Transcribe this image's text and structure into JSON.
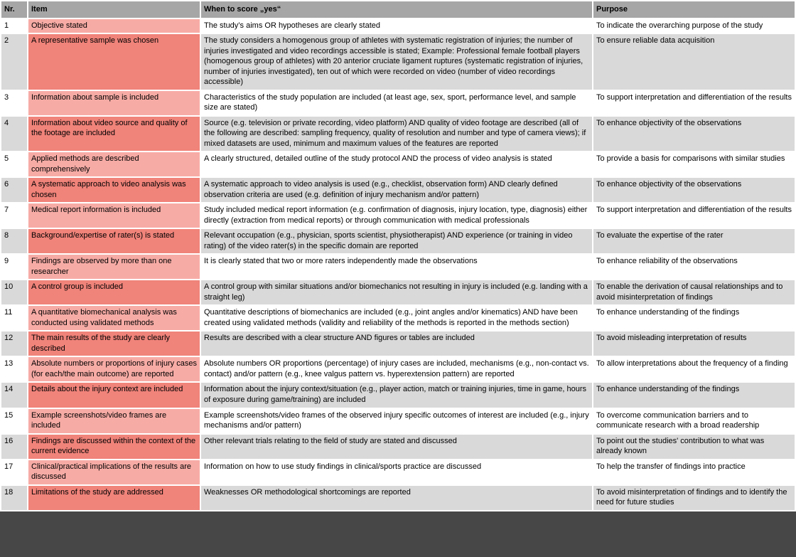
{
  "table": {
    "headers": {
      "nr": "Nr.",
      "item": "Item",
      "when": "When to score „yes“",
      "purpose": "Purpose"
    },
    "rows": [
      {
        "nr": "1",
        "item": "Objective stated",
        "when": "The study’s aims OR hypotheses are clearly stated",
        "purpose": "To indicate the overarching purpose of the study"
      },
      {
        "nr": "2",
        "item": "A representative sample was chosen",
        "when": "The study considers a homogenous group of athletes with systematic registration of injuries; the number of injuries investigated and video recordings accessible is stated; Example: Professional female football players (homogenous group of athletes) with 20 anterior cruciate ligament ruptures (systematic registration of injuries, number of injuries investigated), ten out of which were recorded on video (number of video recordings accessible)",
        "purpose": "To ensure reliable data acquisition"
      },
      {
        "nr": "3",
        "item": "Information about sample is included",
        "when": "Characteristics of the study population are included (at least age, sex, sport, performance level, and sample size are stated)",
        "purpose": "To support interpretation and differentiation of the results"
      },
      {
        "nr": "4",
        "item": "Information about video source and quality of the footage are included",
        "when": "Source (e.g. television or private recording, video platform) AND quality of video footage are described (all of the following are described: sampling frequency, quality of resolution and number and type of camera views); if mixed datasets are used, minimum and maximum values of the features are reported",
        "purpose": "To enhance objectivity of the observations"
      },
      {
        "nr": "5",
        "item": "Applied methods are described comprehensively",
        "when": "A clearly structured, detailed outline of the study protocol AND the process of video analysis is stated",
        "purpose": "To provide a basis for comparisons with similar studies"
      },
      {
        "nr": "6",
        "item": "A systematic approach to video analysis was chosen",
        "when": "A systematic approach to video analysis is used (e.g., checklist, observation form) AND clearly defined observation criteria are used (e.g. definition of injury mechanism and/or pattern)",
        "purpose": "To enhance objectivity of the observations"
      },
      {
        "nr": "7",
        "item": "Medical report information is included",
        "when": "Study included medical report information (e.g. confirmation of diagnosis, injury location, type, diagnosis) either directly (extraction from medical reports) or through communication with medical professionals",
        "purpose": "To support interpretation and differentiation of the results"
      },
      {
        "nr": "8",
        "item": "Background/expertise of rater(s) is stated",
        "when": "Relevant occupation (e.g., physician, sports scientist, physiotherapist) AND experience (or training in video rating) of the video rater(s) in the specific domain are reported",
        "purpose": "To evaluate the expertise of the rater"
      },
      {
        "nr": "9",
        "item": "Findings are observed by more than one researcher",
        "when": "It is clearly stated that two or more raters independently made the observations",
        "purpose": "To enhance reliability of the observations"
      },
      {
        "nr": "10",
        "item": "A control group is included",
        "when": "A control group with similar situations and/or biomechanics not resulting in injury is included (e.g. landing with a straight leg)",
        "purpose": "To enable the derivation of causal relationships and to avoid misinterpretation of findings"
      },
      {
        "nr": "11",
        "item": "A quantitative biomechanical analysis was conducted using validated methods",
        "when": "Quantitative descriptions of biomechanics are included (e.g., joint angles and/or kinematics) AND have been created using validated methods (validity and reliability of the methods is reported in the methods section)",
        "purpose": "To enhance understanding of the findings"
      },
      {
        "nr": "12",
        "item": "The main results of the study are clearly described",
        "when": "Results are described with a clear structure AND figures or tables are included",
        "purpose": "To avoid misleading interpretation of results"
      },
      {
        "nr": "13",
        "item": "Absolute numbers or proportions of injury cases (for each/the main outcome) are reported",
        "when": "Absolute numbers OR proportions (percentage) of injury cases are included, mechanisms (e.g., non-contact vs. contact) and/or pattern (e.g., knee valgus pattern vs. hyperextension pattern) are reported",
        "purpose": "To allow interpretations about the frequency of a finding"
      },
      {
        "nr": "14",
        "item": "Details about the injury context are included",
        "when": "Information about the injury context/situation (e.g., player action, match or training injuries, time in game, hours of exposure during game/training) are included",
        "purpose": "To enhance understanding of the findings"
      },
      {
        "nr": "15",
        "item": "Example screenshots/video frames are included",
        "when": "Example screenshots/video frames of the observed injury specific outcomes of interest are included (e.g., injury mechanisms and/or pattern)",
        "purpose": "To overcome communication barriers and to communicate research with a broad readership"
      },
      {
        "nr": "16",
        "item": "Findings are discussed within the context of the current evidence",
        "when": "Other relevant trials relating to the field of study are stated and discussed",
        "purpose": "To point out the studies' contribution to what was already known"
      },
      {
        "nr": "17",
        "item": "Clinical/practical implications of the results are discussed",
        "when": "Information on how to use study findings in clinical/sports practice are discussed",
        "purpose": "To help the transfer of findings into practice"
      },
      {
        "nr": "18",
        "item": "Limitations of the study are addressed",
        "when": "Weaknesses OR methodological shortcomings are reported",
        "purpose": "To avoid misinterpretation of findings and to identify the need for future studies"
      }
    ]
  },
  "colors": {
    "header_bg": "#a6a6a6",
    "row_odd_bg": "#ffffff",
    "row_even_bg": "#d9d9d9",
    "item_odd_bg": "#f7aba5",
    "item_even_bg": "#f0837a",
    "bottom_bar": "#474747",
    "text": "#000000"
  }
}
